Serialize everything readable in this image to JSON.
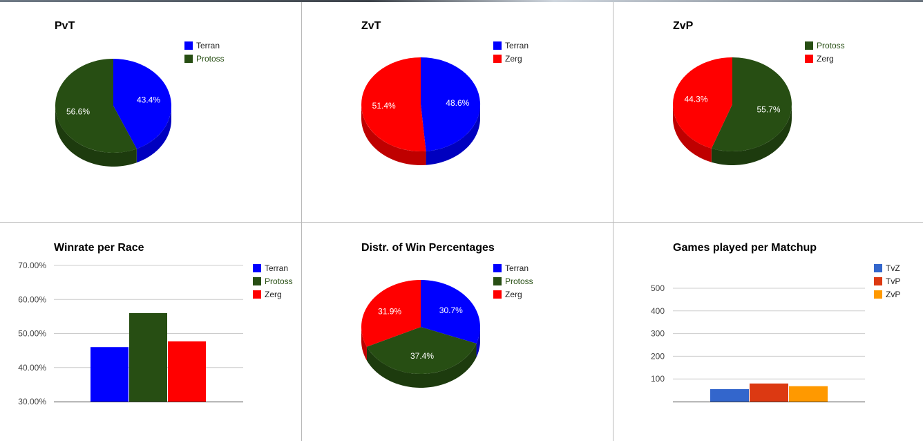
{
  "chart_data": [
    {
      "type": "pie",
      "title": "PvT",
      "slices": [
        {
          "label": "Terran",
          "value": 43.4,
          "display": "43.4%",
          "color": "#0000ff"
        },
        {
          "label": "Protoss",
          "value": 56.6,
          "display": "56.6%",
          "color": "#274e13"
        }
      ],
      "legend_position": "right"
    },
    {
      "type": "pie",
      "title": "ZvT",
      "slices": [
        {
          "label": "Terran",
          "value": 48.6,
          "display": "48.6%",
          "color": "#0000ff"
        },
        {
          "label": "Zerg",
          "value": 51.4,
          "display": "51.4%",
          "color": "#ff0000"
        }
      ],
      "legend_position": "right"
    },
    {
      "type": "pie",
      "title": "ZvP",
      "slices": [
        {
          "label": "Protoss",
          "value": 55.7,
          "display": "55.7%",
          "color": "#274e13"
        },
        {
          "label": "Zerg",
          "value": 44.3,
          "display": "44.3%",
          "color": "#ff0000"
        }
      ],
      "legend_position": "right"
    },
    {
      "type": "bar",
      "title": "Winrate per Race",
      "categories": [
        ""
      ],
      "series": [
        {
          "name": "Terran",
          "values": [
            46.0
          ],
          "color": "#0000ff"
        },
        {
          "name": "Protoss",
          "values": [
            56.0
          ],
          "color": "#274e13"
        },
        {
          "name": "Zerg",
          "values": [
            47.7
          ],
          "color": "#ff0000"
        }
      ],
      "ylim": [
        30,
        70
      ],
      "yticks": [
        30,
        40,
        50,
        60,
        70
      ],
      "ytick_labels": [
        "30.00%",
        "40.00%",
        "50.00%",
        "60.00%",
        "70.00%"
      ],
      "grid": true,
      "legend_position": "right"
    },
    {
      "type": "pie",
      "title": "Distr. of Win Percentages",
      "slices": [
        {
          "label": "Terran",
          "value": 30.7,
          "display": "30.7%",
          "color": "#0000ff"
        },
        {
          "label": "Protoss",
          "value": 37.4,
          "display": "37.4%",
          "color": "#274e13"
        },
        {
          "label": "Zerg",
          "value": 31.9,
          "display": "31.9%",
          "color": "#ff0000"
        }
      ],
      "legend_position": "right"
    },
    {
      "type": "bar",
      "title": "Games played per Matchup",
      "categories": [
        ""
      ],
      "series": [
        {
          "name": "TvZ",
          "values": [
            55
          ],
          "color": "#3366cc"
        },
        {
          "name": "TvP",
          "values": [
            80
          ],
          "color": "#dc3912"
        },
        {
          "name": "ZvP",
          "values": [
            68
          ],
          "color": "#ff9900"
        }
      ],
      "ylim": [
        0,
        500
      ],
      "yticks": [
        100,
        200,
        300,
        400,
        500
      ],
      "ytick_labels": [
        "100",
        "200",
        "300",
        "400",
        "500"
      ],
      "grid": true,
      "legend_position": "right"
    }
  ]
}
